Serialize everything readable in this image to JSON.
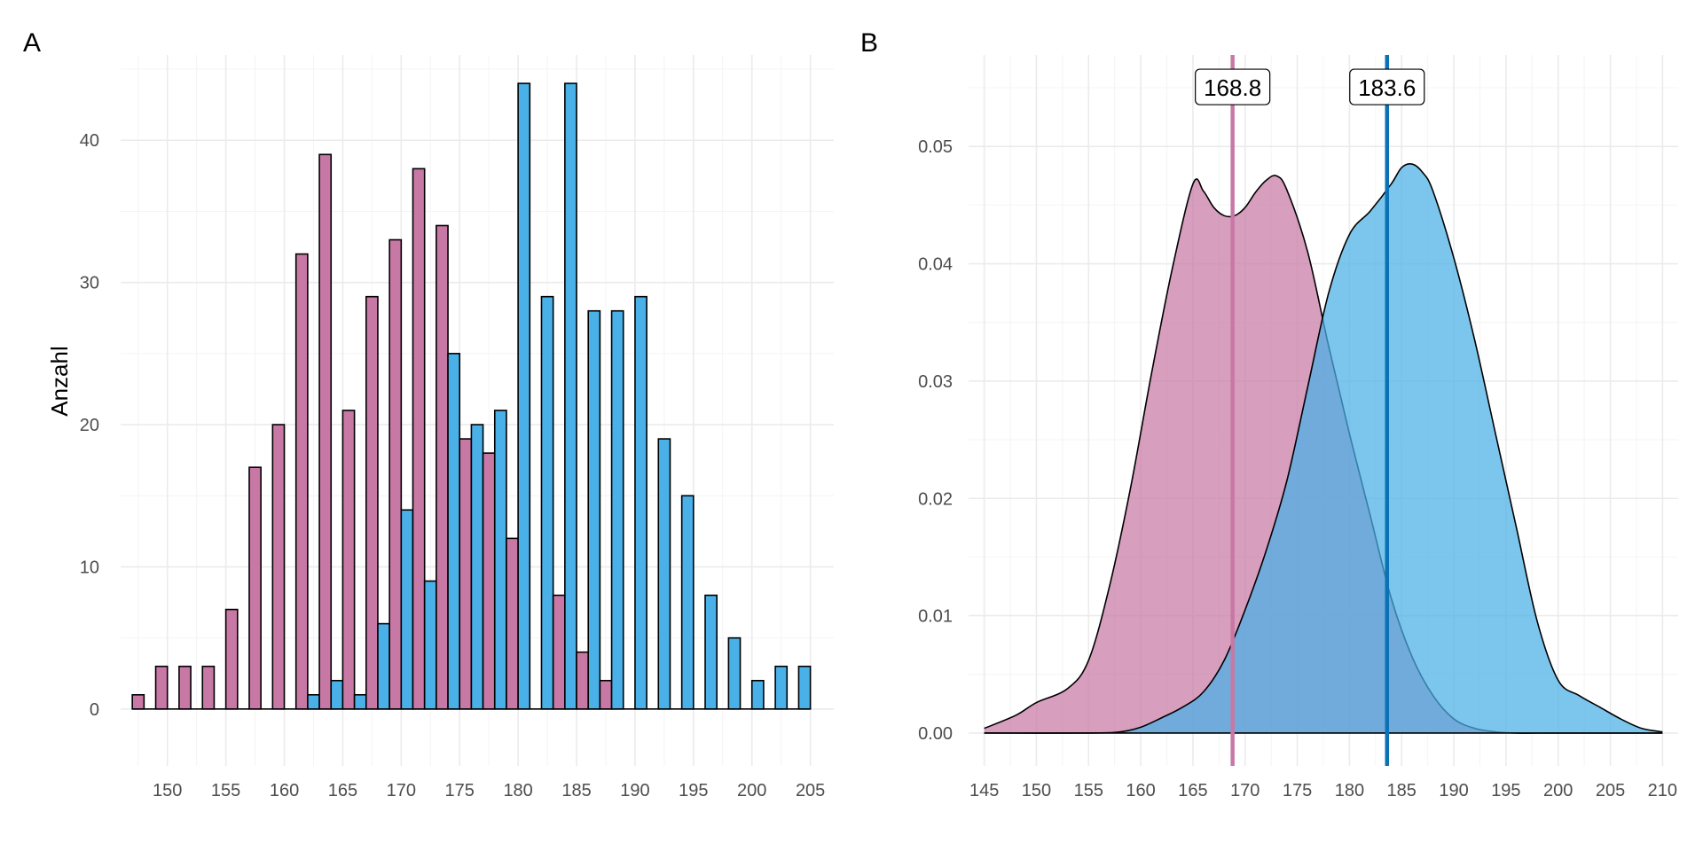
{
  "colors": {
    "female": "#c878a5",
    "male": "#4ab0e8",
    "female_line": "#c878a5",
    "male_line": "#0b72b5"
  },
  "chart_data": [
    {
      "panel": "A",
      "type": "bar",
      "title": "",
      "xlabel": "",
      "ylabel": "Anzahl",
      "xlim": [
        146,
        207
      ],
      "ylim": [
        -4,
        46
      ],
      "xticks": [
        150,
        155,
        160,
        165,
        170,
        175,
        180,
        185,
        190,
        195,
        200,
        205
      ],
      "yticks": [
        0,
        10,
        20,
        30,
        40
      ],
      "grid": true,
      "bin_width": 2,
      "bin_centers": [
        148,
        150,
        152,
        154,
        156,
        158,
        160,
        162,
        164,
        166,
        168,
        170,
        172,
        174,
        176,
        178,
        180,
        182,
        184,
        186,
        188,
        190,
        192,
        194,
        196,
        198,
        200,
        202,
        204
      ],
      "series": [
        {
          "color": "#c878a5",
          "values": [
            1,
            3,
            3,
            3,
            7,
            17,
            20,
            32,
            39,
            21,
            29,
            33,
            38,
            34,
            19,
            18,
            12,
            0,
            8,
            4,
            2,
            0,
            0,
            0,
            0,
            0,
            0,
            0,
            0
          ]
        },
        {
          "color": "#4ab0e8",
          "values": [
            0,
            0,
            0,
            0,
            0,
            0,
            0,
            1,
            2,
            1,
            6,
            14,
            9,
            25,
            20,
            21,
            44,
            29,
            44,
            28,
            28,
            29,
            19,
            15,
            8,
            5,
            2,
            3,
            3
          ]
        }
      ]
    },
    {
      "panel": "B",
      "type": "area",
      "title": "",
      "xlabel": "",
      "ylabel": "",
      "xlim": [
        143.5,
        211.5
      ],
      "ylim": [
        -0.0028,
        0.0578
      ],
      "xticks": [
        145,
        150,
        155,
        160,
        165,
        170,
        175,
        180,
        185,
        190,
        195,
        200,
        205,
        210
      ],
      "yticks": [
        0.0,
        0.01,
        0.02,
        0.03,
        0.04,
        0.05
      ],
      "ytick_labels": [
        "0.00",
        "0.01",
        "0.02",
        "0.03",
        "0.04",
        "0.05"
      ],
      "grid": true,
      "series": [
        {
          "color": "#c878a5",
          "mean": 168.8,
          "mean_label": "168.8",
          "x": [
            145,
            148,
            150,
            153,
            155,
            157,
            159,
            161,
            163,
            165,
            166,
            167,
            168,
            169,
            170,
            171,
            172,
            173,
            174,
            176,
            178,
            180,
            182,
            184,
            186,
            188,
            190,
            192,
            194,
            196,
            200,
            210
          ],
          "y": [
            0.0004,
            0.0015,
            0.0026,
            0.0038,
            0.0062,
            0.0125,
            0.0208,
            0.0305,
            0.0395,
            0.0468,
            0.0462,
            0.0448,
            0.0441,
            0.0441,
            0.0448,
            0.0461,
            0.0471,
            0.0475,
            0.0463,
            0.041,
            0.033,
            0.0255,
            0.0185,
            0.0115,
            0.0065,
            0.0032,
            0.0012,
            0.0004,
            0.0001,
            0.0,
            0.0,
            0.0
          ]
        },
        {
          "color": "#4ab0e8",
          "mean": 183.6,
          "mean_label": "183.6",
          "x": [
            145,
            155,
            158,
            160,
            162,
            164,
            166,
            168,
            170,
            172,
            174,
            176,
            178,
            180,
            182,
            184,
            185,
            186,
            187,
            188,
            190,
            192,
            194,
            196,
            198,
            200,
            202,
            204,
            206,
            208,
            210
          ],
          "y": [
            0.0,
            0.0,
            0.0001,
            0.0005,
            0.0013,
            0.0022,
            0.0035,
            0.0062,
            0.0105,
            0.0155,
            0.0215,
            0.0295,
            0.0375,
            0.0425,
            0.0445,
            0.0468,
            0.0482,
            0.0485,
            0.0478,
            0.0462,
            0.0405,
            0.0335,
            0.0255,
            0.0175,
            0.0095,
            0.0045,
            0.0032,
            0.0022,
            0.0012,
            0.0004,
            0.0001
          ]
        }
      ]
    }
  ]
}
